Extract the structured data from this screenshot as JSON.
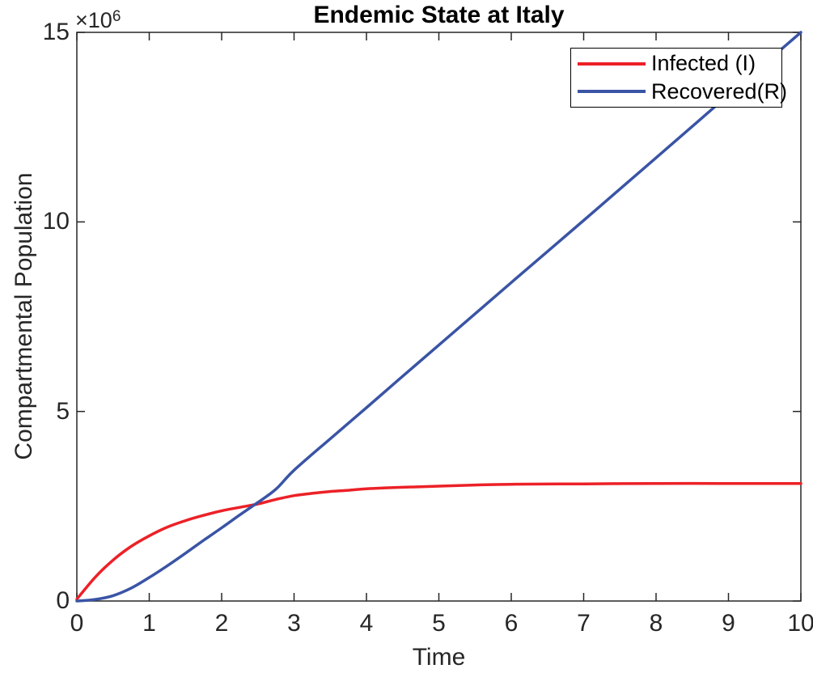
{
  "figure": {
    "title": "Endemic State at Italy",
    "background": "#ffffff",
    "axis_color": "#262626"
  },
  "axes": {
    "x": {
      "label": "Time",
      "tick_values": [
        0,
        1,
        2,
        3,
        4,
        5,
        6,
        7,
        8,
        9,
        10
      ],
      "tick_labels": [
        "0",
        "1",
        "2",
        "3",
        "4",
        "5",
        "6",
        "7",
        "8",
        "9",
        "10"
      ]
    },
    "y": {
      "label": "Compartmental Population",
      "multiplier_base": "×10",
      "multiplier_exp": "6",
      "tick_values": [
        0,
        5000000,
        10000000,
        15000000
      ],
      "tick_labels": [
        "0",
        "5",
        "10",
        "15"
      ]
    }
  },
  "legend": {
    "items": [
      {
        "label": "Infected (I)",
        "color": "#ec2127"
      },
      {
        "label": "Recovered(R)",
        "color": "#3a54a5"
      }
    ]
  },
  "chart_data": {
    "type": "line",
    "title": "Endemic State at Italy",
    "xlabel": "Time",
    "ylabel": "Compartmental Population",
    "xlim": [
      0,
      10
    ],
    "ylim": [
      0,
      15000000
    ],
    "grid": false,
    "legend_position": "top-right",
    "y_tick_scale_note": "y tick labels are values ×10^6",
    "series": [
      {
        "name": "Infected (I)",
        "color": "#ec2127",
        "x": [
          0,
          0.25,
          0.5,
          0.75,
          1,
          1.25,
          1.5,
          1.75,
          2,
          2.25,
          2.5,
          2.75,
          3,
          3.25,
          3.5,
          3.75,
          4,
          4.5,
          5,
          5.5,
          6,
          7,
          8,
          9,
          10
        ],
        "y": [
          50000,
          620000,
          1080000,
          1440000,
          1720000,
          1950000,
          2120000,
          2260000,
          2380000,
          2470000,
          2560000,
          2680000,
          2780000,
          2840000,
          2890000,
          2920000,
          2960000,
          3000000,
          3030000,
          3060000,
          3080000,
          3090000,
          3100000,
          3100000,
          3100000
        ]
      },
      {
        "name": "Recovered(R)",
        "color": "#3a54a5",
        "x": [
          0,
          0.25,
          0.5,
          0.75,
          1,
          1.25,
          1.5,
          1.75,
          2,
          2.25,
          2.5,
          2.75,
          3,
          3.5,
          4,
          4.5,
          5,
          6,
          7,
          8,
          9,
          10
        ],
        "y": [
          0,
          40000,
          140000,
          340000,
          620000,
          930000,
          1260000,
          1600000,
          1930000,
          2270000,
          2600000,
          2950000,
          3450000,
          4280000,
          5100000,
          5930000,
          6750000,
          8400000,
          10040000,
          11690000,
          13350000,
          15000000
        ]
      }
    ]
  }
}
